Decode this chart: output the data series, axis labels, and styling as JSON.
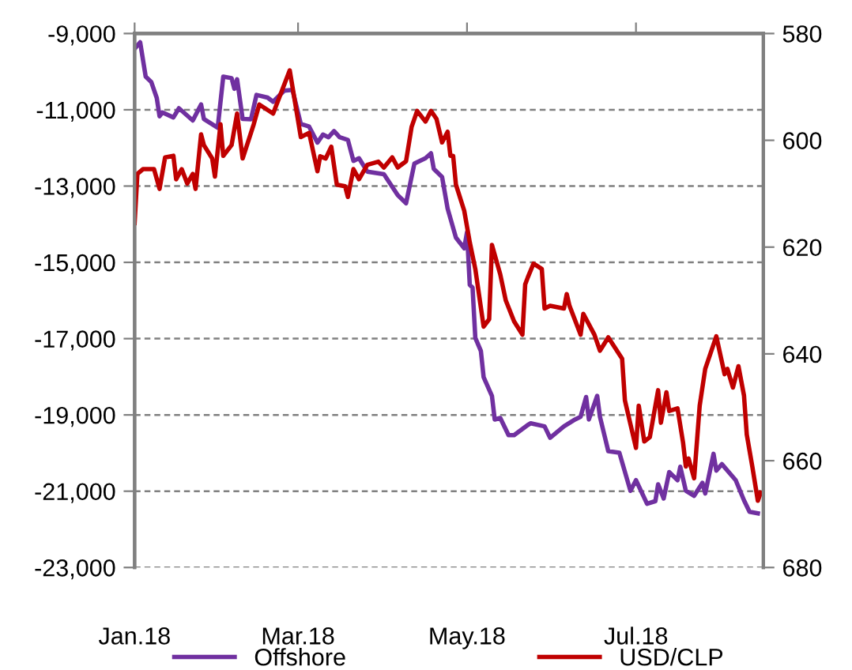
{
  "chart_data": {
    "type": "line",
    "xlim": [
      "2018-01-01",
      "2018-08-16"
    ],
    "xticks": [
      {
        "value": "2018-01-01",
        "label": "Jan.18"
      },
      {
        "value": "2018-03-01",
        "label": "Mar.18"
      },
      {
        "value": "2018-05-01",
        "label": "May.18"
      },
      {
        "value": "2018-07-01",
        "label": "Jul.18"
      }
    ],
    "ylim": [
      -23000,
      -9000
    ],
    "yticks": [
      {
        "value": -23000,
        "label": "-23,000"
      },
      {
        "value": -21000,
        "label": "-21,000"
      },
      {
        "value": -19000,
        "label": "-19,000"
      },
      {
        "value": -17000,
        "label": "-17,000"
      },
      {
        "value": -15000,
        "label": "-15,000"
      },
      {
        "value": -13000,
        "label": "-13,000"
      },
      {
        "value": -11000,
        "label": "-11,000"
      },
      {
        "value": -9000,
        "label": "-9,000"
      }
    ],
    "y2lim": [
      680,
      580
    ],
    "y2ticks": [
      580,
      600,
      620,
      640,
      660,
      680
    ],
    "grid": "y",
    "legend": "bottom",
    "line_style": "solid",
    "marker": "none",
    "series": [
      {
        "name": "Offshore",
        "color": "#7030a0",
        "x": [
          "2018-01-01",
          "2018-01-03",
          "2018-01-05",
          "2018-01-07",
          "2018-01-09",
          "2018-01-10",
          "2018-01-11",
          "2018-01-15",
          "2018-01-17",
          "2018-01-22",
          "2018-01-25",
          "2018-01-26",
          "2018-01-31",
          "2018-02-02",
          "2018-02-05",
          "2018-02-06",
          "2018-02-07",
          "2018-02-09",
          "2018-02-12",
          "2018-02-14",
          "2018-02-18",
          "2018-02-20",
          "2018-02-24",
          "2018-02-27",
          "2018-03-02",
          "2018-03-05",
          "2018-03-08",
          "2018-03-10",
          "2018-03-12",
          "2018-03-14",
          "2018-03-16",
          "2018-03-19",
          "2018-03-21",
          "2018-03-23",
          "2018-03-26",
          "2018-04-01",
          "2018-04-06",
          "2018-04-09",
          "2018-04-12",
          "2018-04-16",
          "2018-04-18",
          "2018-04-19",
          "2018-04-22",
          "2018-04-24",
          "2018-04-27",
          "2018-04-30",
          "2018-05-01",
          "2018-05-02",
          "2018-05-03",
          "2018-05-04",
          "2018-05-06",
          "2018-05-07",
          "2018-05-10",
          "2018-05-11",
          "2018-05-13",
          "2018-05-16",
          "2018-05-18",
          "2018-05-23",
          "2018-05-24",
          "2018-05-29",
          "2018-05-31",
          "2018-06-05",
          "2018-06-09",
          "2018-06-11",
          "2018-06-13",
          "2018-06-14",
          "2018-06-17",
          "2018-06-18",
          "2018-06-21",
          "2018-06-25",
          "2018-06-29",
          "2018-07-01",
          "2018-07-05",
          "2018-07-08",
          "2018-07-09",
          "2018-07-11",
          "2018-07-13",
          "2018-07-16",
          "2018-07-17",
          "2018-07-19",
          "2018-07-22",
          "2018-07-25",
          "2018-07-26",
          "2018-07-29",
          "2018-07-30",
          "2018-08-01",
          "2018-08-06",
          "2018-08-09",
          "2018-08-11",
          "2018-08-14"
        ],
        "values": [
          -9400,
          -9230,
          -10130,
          -10270,
          -10690,
          -11170,
          -11070,
          -11200,
          -10960,
          -11280,
          -10860,
          -11240,
          -11470,
          -10130,
          -10170,
          -10450,
          -10200,
          -11240,
          -11250,
          -10610,
          -10680,
          -10790,
          -10500,
          -10480,
          -11370,
          -11440,
          -11860,
          -11650,
          -11720,
          -11560,
          -11720,
          -11790,
          -12340,
          -12270,
          -12620,
          -12690,
          -13240,
          -13450,
          -12410,
          -12270,
          -12140,
          -12550,
          -12760,
          -13590,
          -14350,
          -14630,
          -14210,
          -15590,
          -15660,
          -16980,
          -17320,
          -18010,
          -18500,
          -19120,
          -19080,
          -19530,
          -19530,
          -19260,
          -19220,
          -19300,
          -19600,
          -19300,
          -19120,
          -19050,
          -18530,
          -19120,
          -18500,
          -19050,
          -19950,
          -19990,
          -20990,
          -20710,
          -21330,
          -21260,
          -20820,
          -21190,
          -20500,
          -20710,
          -20360,
          -20990,
          -21120,
          -20780,
          -21060,
          -20020,
          -20460,
          -20290,
          -20710,
          -21240,
          -21540,
          -21580
        ]
      },
      {
        "name": "USD/CLP",
        "color": "#c00000",
        "axis": "y2",
        "x": [
          "2018-01-01",
          "2018-01-02",
          "2018-01-04",
          "2018-01-08",
          "2018-01-10",
          "2018-01-12",
          "2018-01-15",
          "2018-01-16",
          "2018-01-18",
          "2018-01-20",
          "2018-01-22",
          "2018-01-23",
          "2018-01-25",
          "2018-01-26",
          "2018-01-29",
          "2018-01-30",
          "2018-02-01",
          "2018-02-02",
          "2018-02-05",
          "2018-02-07",
          "2018-02-09",
          "2018-02-13",
          "2018-02-15",
          "2018-02-20",
          "2018-02-26",
          "2018-03-02",
          "2018-03-05",
          "2018-03-08",
          "2018-03-09",
          "2018-03-11",
          "2018-03-13",
          "2018-03-15",
          "2018-03-18",
          "2018-03-19",
          "2018-03-21",
          "2018-03-23",
          "2018-03-26",
          "2018-03-30",
          "2018-04-01",
          "2018-04-04",
          "2018-04-06",
          "2018-04-09",
          "2018-04-11",
          "2018-04-13",
          "2018-04-16",
          "2018-04-18",
          "2018-04-20",
          "2018-04-22",
          "2018-04-24",
          "2018-04-25",
          "2018-04-26",
          "2018-04-27",
          "2018-04-30",
          "2018-05-02",
          "2018-05-04",
          "2018-05-07",
          "2018-05-09",
          "2018-05-10",
          "2018-05-13",
          "2018-05-15",
          "2018-05-18",
          "2018-05-21",
          "2018-05-22",
          "2018-05-23",
          "2018-05-25",
          "2018-05-28",
          "2018-05-29",
          "2018-05-31",
          "2018-06-05",
          "2018-06-06",
          "2018-06-07",
          "2018-06-11",
          "2018-06-12",
          "2018-06-16",
          "2018-06-18",
          "2018-06-21",
          "2018-06-26",
          "2018-06-27",
          "2018-07-01",
          "2018-07-02",
          "2018-07-04",
          "2018-07-06",
          "2018-07-09",
          "2018-07-10",
          "2018-07-12",
          "2018-07-13",
          "2018-07-16",
          "2018-07-18",
          "2018-07-19",
          "2018-07-20",
          "2018-07-22",
          "2018-07-24",
          "2018-07-26",
          "2018-07-30",
          "2018-08-02",
          "2018-08-03",
          "2018-08-05",
          "2018-08-07",
          "2018-08-09",
          "2018-08-10",
          "2018-08-12",
          "2018-08-14",
          "2018-08-15"
        ],
        "values": [
          615.5,
          606.3,
          605.4,
          605.4,
          609.1,
          603.2,
          602.9,
          607.3,
          605.4,
          608.1,
          606.3,
          609.1,
          598.9,
          600.9,
          603.4,
          606.8,
          597,
          602.9,
          600.9,
          595,
          603.4,
          597,
          593.3,
          595,
          586.9,
          599.4,
          598.6,
          605.8,
          603,
          603.4,
          601.2,
          608.3,
          608.6,
          610.6,
          605.4,
          607.3,
          604.6,
          604,
          605.1,
          603.2,
          605.1,
          603.9,
          597.5,
          594.5,
          596.5,
          594.5,
          596,
          600.4,
          598.4,
          602.9,
          602.9,
          608.3,
          613.2,
          619.1,
          624.1,
          634.9,
          633.5,
          619.6,
          625.1,
          630,
          633.9,
          636.4,
          627,
          625.6,
          623.1,
          624.1,
          631.5,
          631,
          631.5,
          628.8,
          631,
          636.4,
          632.5,
          636.4,
          639.4,
          636.9,
          640.9,
          648.7,
          657.6,
          649.7,
          656.4,
          655.6,
          646.8,
          652.9,
          647.2,
          650.7,
          650.2,
          656.6,
          661.1,
          659.6,
          663.3,
          649.7,
          642.8,
          636.7,
          643.8,
          642.8,
          646.3,
          642.3,
          647.8,
          655.1,
          661.1,
          667.5,
          666
        ]
      }
    ]
  }
}
